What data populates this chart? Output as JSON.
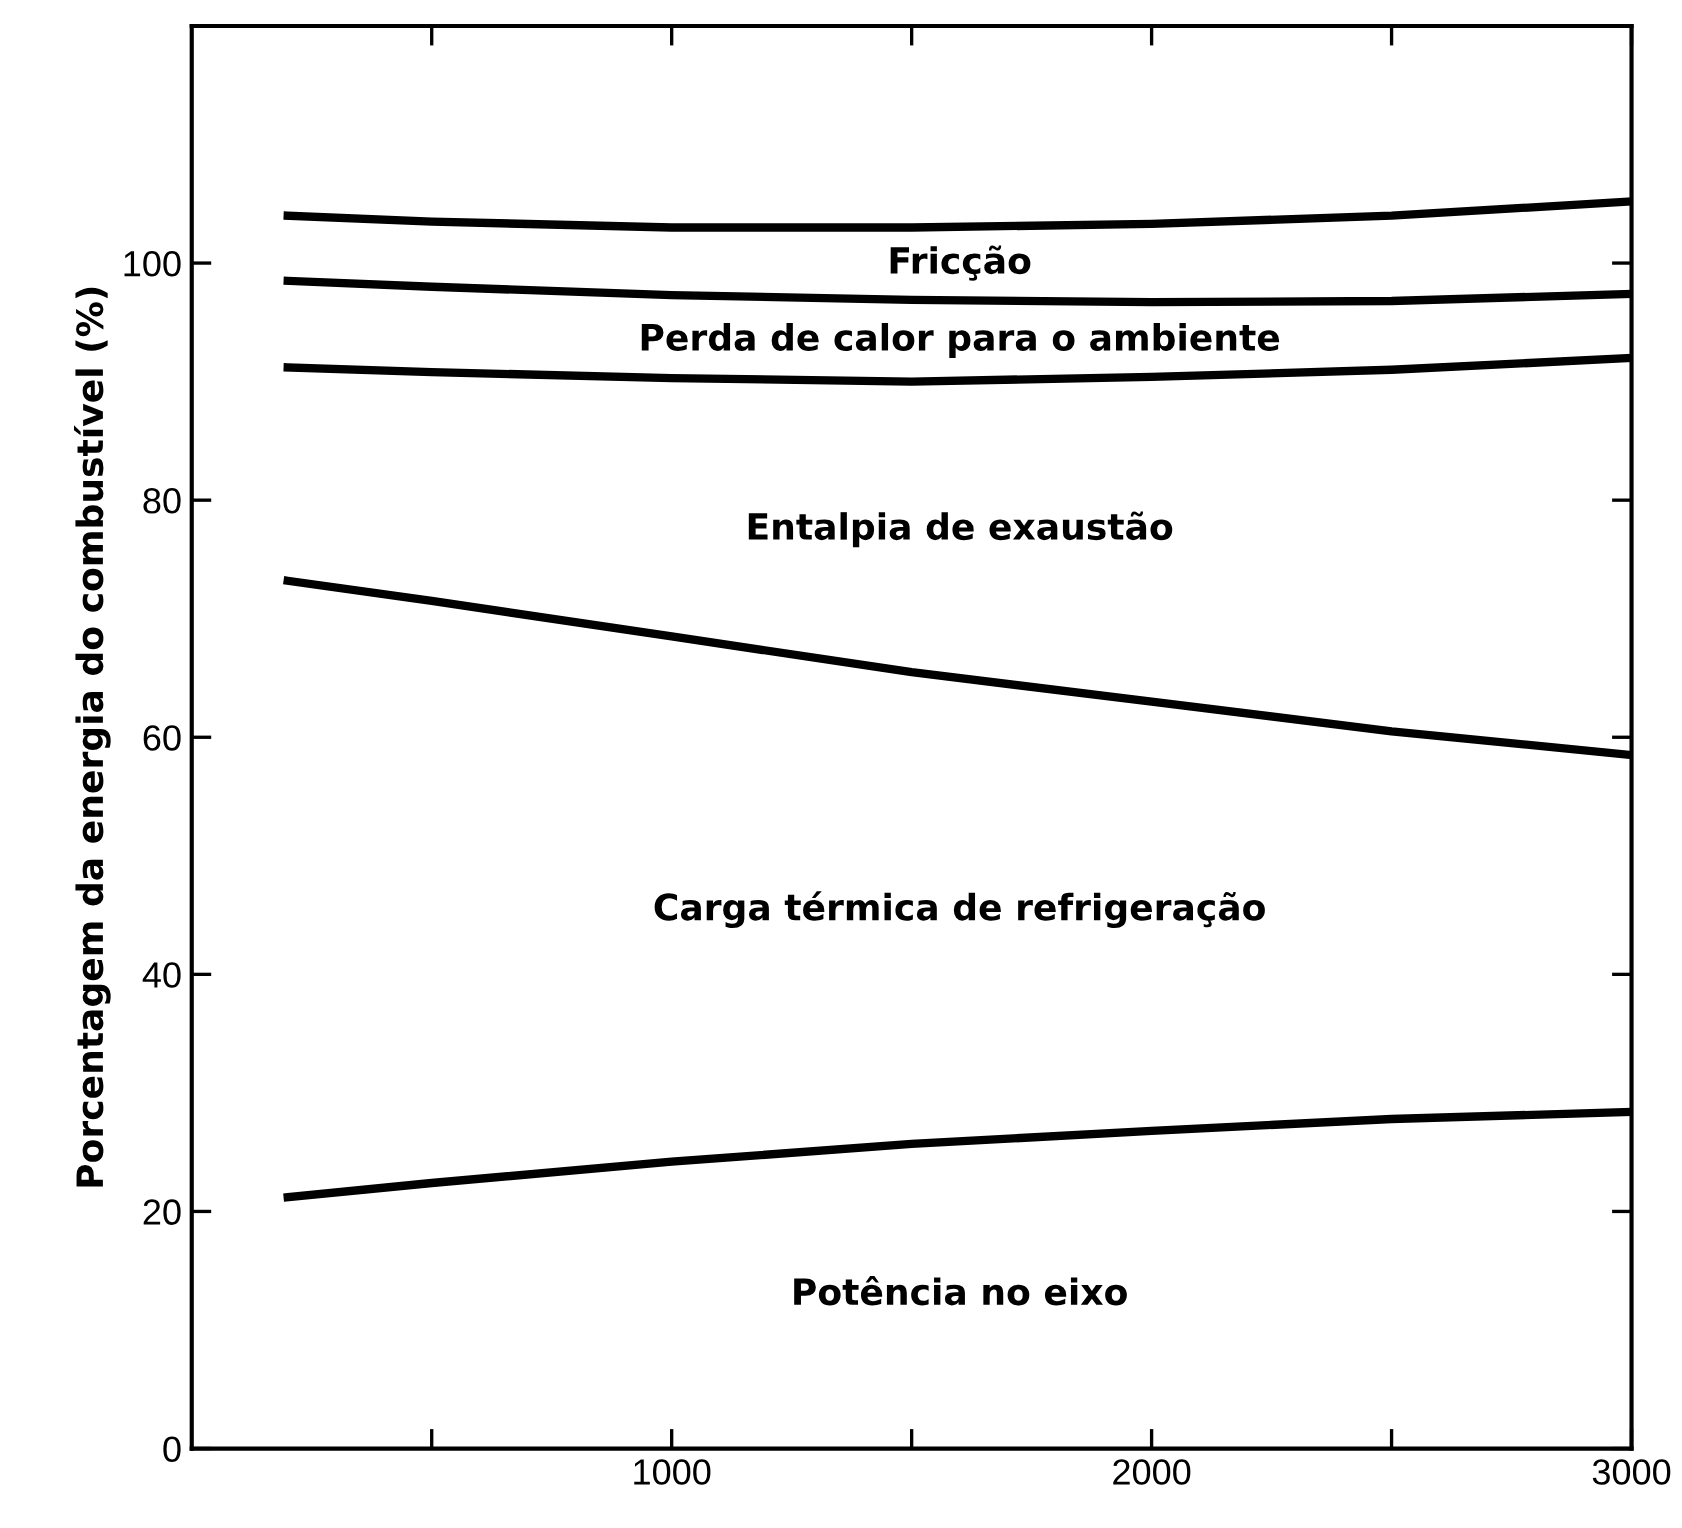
{
  "chart_data": {
    "type": "line",
    "ylabel": "Porcentagem da energia do combustível (%)",
    "x": [
      200,
      500,
      1000,
      1500,
      2000,
      2500,
      3000
    ],
    "series": [
      {
        "color": "#000000",
        "values": [
          104,
          103.5,
          103,
          103,
          103.3,
          104,
          105.2
        ]
      },
      {
        "color": "#000000",
        "values": [
          98.5,
          98,
          97.3,
          96.9,
          96.7,
          96.8,
          97.4
        ]
      },
      {
        "color": "#000000",
        "values": [
          91.2,
          90.8,
          90.3,
          90,
          90.4,
          91,
          92
        ]
      },
      {
        "color": "#000000",
        "values": [
          73.2,
          71.5,
          68.5,
          65.5,
          63,
          60.5,
          58.5
        ]
      },
      {
        "color": "#000000",
        "values": [
          21.2,
          22.4,
          24.2,
          25.7,
          26.8,
          27.8,
          28.4
        ]
      }
    ],
    "xlim": [
      0,
      3000
    ],
    "xticks": [
      {
        "value": 500,
        "label": null
      },
      1000,
      {
        "value": 1500,
        "label": null
      },
      2000,
      {
        "value": 2500,
        "label": null
      },
      3000
    ],
    "ylim": [
      0,
      120
    ],
    "yticks": [
      0,
      20,
      40,
      60,
      80,
      100
    ],
    "annotations": [
      "Fricção",
      "Perda de calor para o ambiente",
      "Entalpia de exaustão",
      "Carga térmica de refrigeração",
      "Potência no eixo"
    ],
    "grid": false,
    "marker": "none",
    "line_style": "solid"
  }
}
